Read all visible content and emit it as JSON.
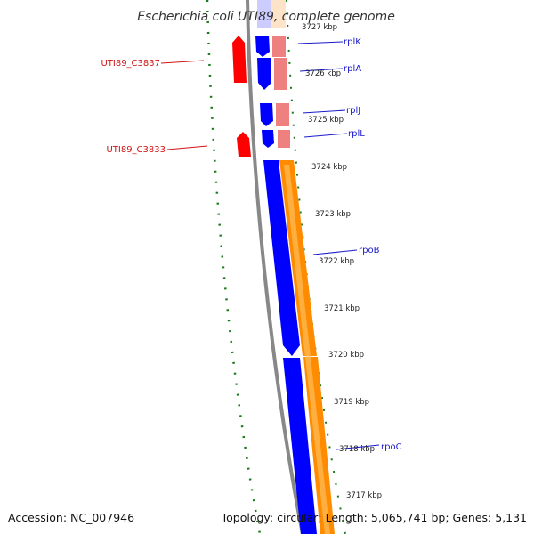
{
  "title": "Escherichia coli UTI89, complete genome",
  "footer": {
    "accession": "Accession: NC_007946",
    "summary": "Topology: circular; Length: 5,065,741 bp; Genes: 5,131"
  },
  "colors": {
    "forward_cds": "#0000ff",
    "forward_product": "#ff8c00",
    "ribosomal_product": "#ee8080",
    "reverse_cds": "#ff0000",
    "tick": "#1a7a1a",
    "backbone": "#888888",
    "blue_label": "#1a1acc",
    "red_label": "#d11414"
  },
  "kbp_labels": [
    "3727 kbp",
    "3726 kbp",
    "3725 kbp",
    "3724 kbp",
    "3723 kbp",
    "3722 kbp",
    "3721 kbp",
    "3720 kbp",
    "3719 kbp",
    "3718 kbp",
    "3717 kbp"
  ],
  "forward_genes": [
    "rplK",
    "rplA",
    "rplJ",
    "rplL",
    "rpoB",
    "rpoC"
  ],
  "reverse_genes": [
    "UTI89_C3837",
    "UTI89_C3833"
  ]
}
